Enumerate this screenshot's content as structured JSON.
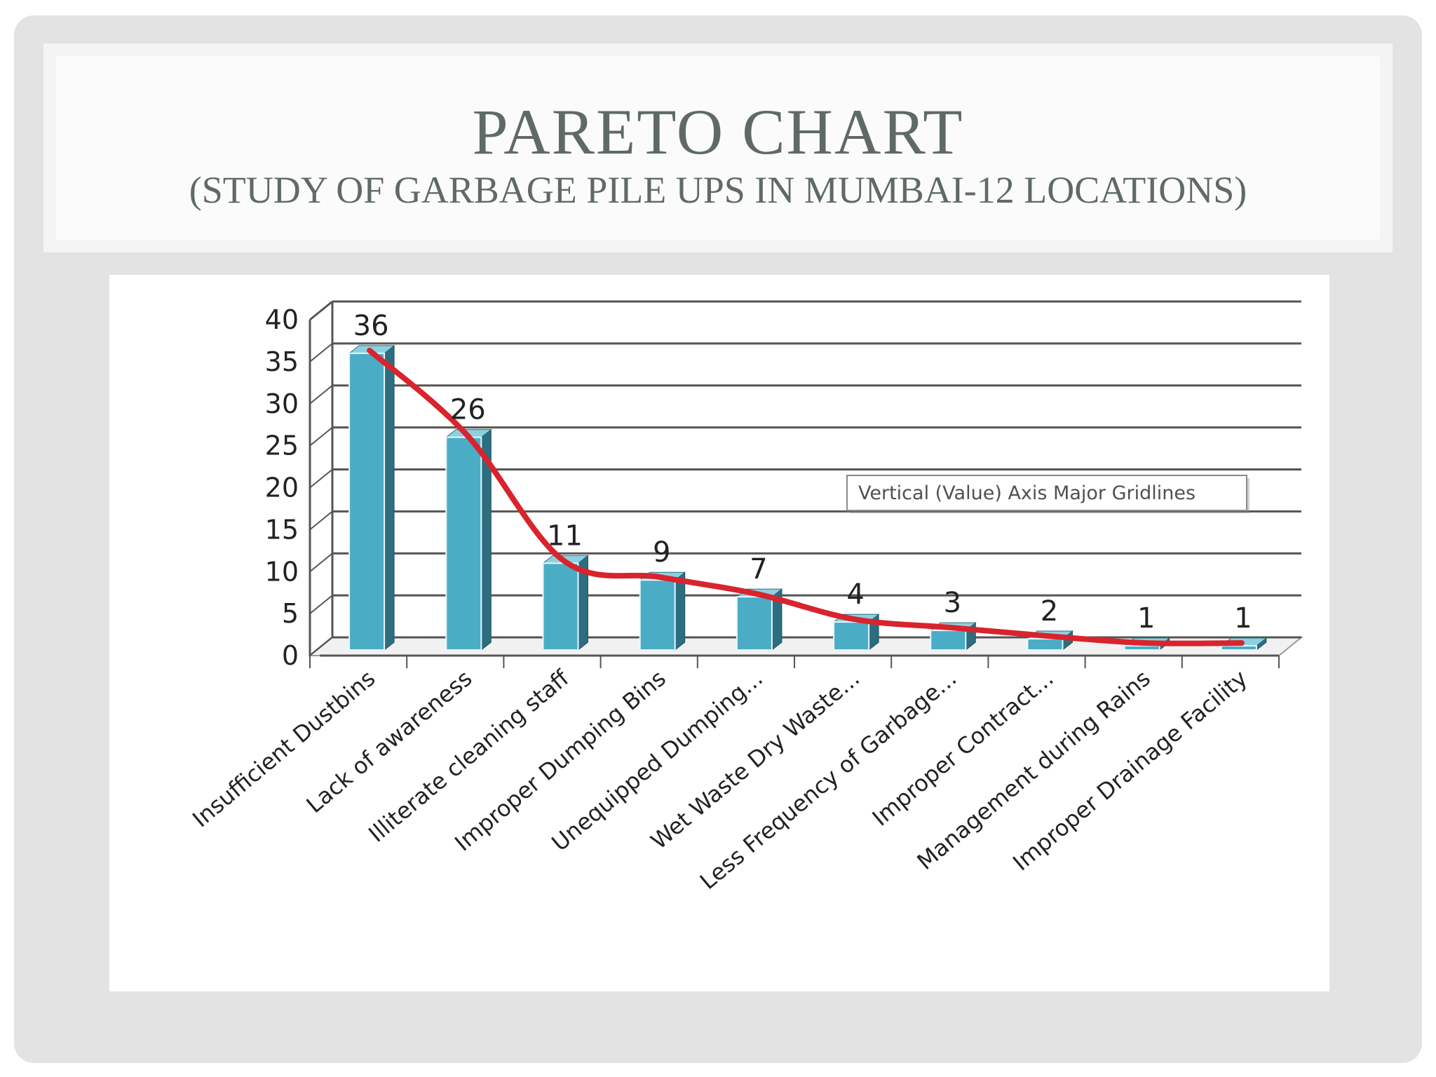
{
  "slide": {
    "title": "PARETO CHART",
    "subtitle": "(STUDY OF GARBAGE PILE UPS IN MUMBAI-12 LOCATIONS)"
  },
  "tooltip": {
    "text": "Vertical (Value) Axis Major Gridlines"
  },
  "colors": {
    "bar_front": "#4bacc6",
    "bar_side": "#2c6e80",
    "bar_top": "#8fd0e0",
    "trend": "#d9232d",
    "gridline": "#555555"
  },
  "chart_data": {
    "type": "bar",
    "style": "3d-column",
    "categories": [
      "Insufficient Dustbins",
      "Lack of awareness",
      "Illiterate cleaning staff",
      "Improper Dumping Bins",
      "Unequipped Dumping...",
      "Wet Waste Dry Waste...",
      "Less Frequency of Garbage...",
      "Improper Contract...",
      "Management during Rains",
      "Improper Drainage Facility"
    ],
    "values": [
      36,
      26,
      11,
      9,
      7,
      4,
      3,
      2,
      1,
      1
    ],
    "data_labels": [
      "36",
      "26",
      "11",
      "9",
      "7",
      "4",
      "3",
      "2",
      "1",
      "1"
    ],
    "trendline": "smooth curve through bar tops",
    "ylim": [
      0,
      40
    ],
    "yticks": [
      0,
      5,
      10,
      15,
      20,
      25,
      30,
      35,
      40
    ],
    "grid": true,
    "legend": "none"
  }
}
